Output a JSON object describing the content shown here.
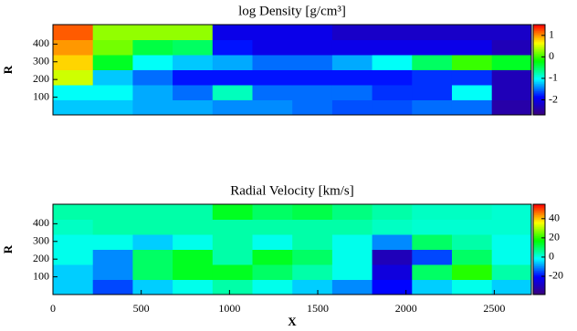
{
  "chart_data": [
    {
      "type": "heatmap",
      "title": "log Density [g/cm³]",
      "y_label": "R",
      "xlim": [
        0,
        2710
      ],
      "ylim": [
        0,
        510
      ],
      "yticks": [
        100,
        200,
        300,
        400
      ],
      "xbins": [
        0,
        226,
        452,
        678,
        904,
        1130,
        1356,
        1582,
        1808,
        2034,
        2260,
        2486,
        2710
      ],
      "ybins": [
        0,
        85,
        170,
        255,
        340,
        425,
        510
      ],
      "values": [
        [
          -1.2,
          -1.2,
          -1.3,
          -1.3,
          -1.4,
          -1.4,
          -1.5,
          -1.6,
          -1.6,
          -1.5,
          -1.5,
          -2.4
        ],
        [
          -1.0,
          -1.0,
          -1.3,
          -1.5,
          -0.8,
          -1.5,
          -1.5,
          -1.5,
          -1.7,
          -1.7,
          -1.0,
          -2.3
        ],
        [
          0.5,
          -1.2,
          -1.5,
          -1.8,
          -1.8,
          -1.8,
          -1.8,
          -1.8,
          -1.8,
          -1.7,
          -1.7,
          -2.3
        ],
        [
          0.8,
          -0.3,
          -1.0,
          -1.2,
          -1.3,
          -1.5,
          -1.5,
          -1.3,
          -1.0,
          -0.5,
          0.0,
          -0.3
        ],
        [
          1.0,
          0.2,
          -0.4,
          -0.5,
          -1.8,
          -2.0,
          -2.0,
          -2.0,
          -2.0,
          -2.0,
          -2.0,
          -2.3
        ],
        [
          1.2,
          0.3,
          0.3,
          0.3,
          -2.0,
          -2.0,
          -2.0,
          -2.2,
          -2.2,
          -2.2,
          -2.2,
          -2.2
        ]
      ],
      "clim": [
        -2.7,
        1.5
      ],
      "cticks": [
        1,
        0,
        -1,
        -2
      ],
      "colorscale": [
        "#3c0078",
        "#0000ff",
        "#00ffff",
        "#00ff00",
        "#ffff00",
        "#ff0000"
      ]
    },
    {
      "type": "heatmap",
      "title": "Radial Velocity [km/s]",
      "y_label": "R",
      "x_label": "X",
      "xlim": [
        0,
        2710
      ],
      "ylim": [
        0,
        510
      ],
      "yticks": [
        100,
        200,
        300,
        400
      ],
      "xticks": [
        0,
        500,
        1000,
        1500,
        2000,
        2500
      ],
      "xbins": [
        0,
        226,
        452,
        678,
        904,
        1130,
        1356,
        1582,
        1808,
        2034,
        2260,
        2486,
        2710
      ],
      "ybins": [
        0,
        85,
        170,
        255,
        340,
        425,
        510
      ],
      "values": [
        [
          -5,
          -15,
          -5,
          0,
          5,
          0,
          -5,
          -10,
          -20,
          -5,
          0,
          -5
        ],
        [
          -5,
          -10,
          10,
          15,
          15,
          10,
          5,
          0,
          -25,
          10,
          20,
          5
        ],
        [
          0,
          -10,
          10,
          15,
          5,
          15,
          10,
          0,
          -30,
          -15,
          10,
          0
        ],
        [
          0,
          0,
          -5,
          0,
          5,
          0,
          5,
          0,
          -10,
          10,
          5,
          0
        ],
        [
          3,
          5,
          5,
          5,
          5,
          5,
          5,
          5,
          3,
          2,
          2,
          2
        ],
        [
          5,
          5,
          5,
          5,
          15,
          10,
          12,
          8,
          5,
          3,
          3,
          2
        ]
      ],
      "clim": [
        -39,
        55
      ],
      "cticks": [
        40,
        20,
        0,
        -20
      ],
      "colorscale": [
        "#3c0078",
        "#0000ff",
        "#00ffff",
        "#00ff00",
        "#ffff00",
        "#ff0000"
      ]
    }
  ]
}
